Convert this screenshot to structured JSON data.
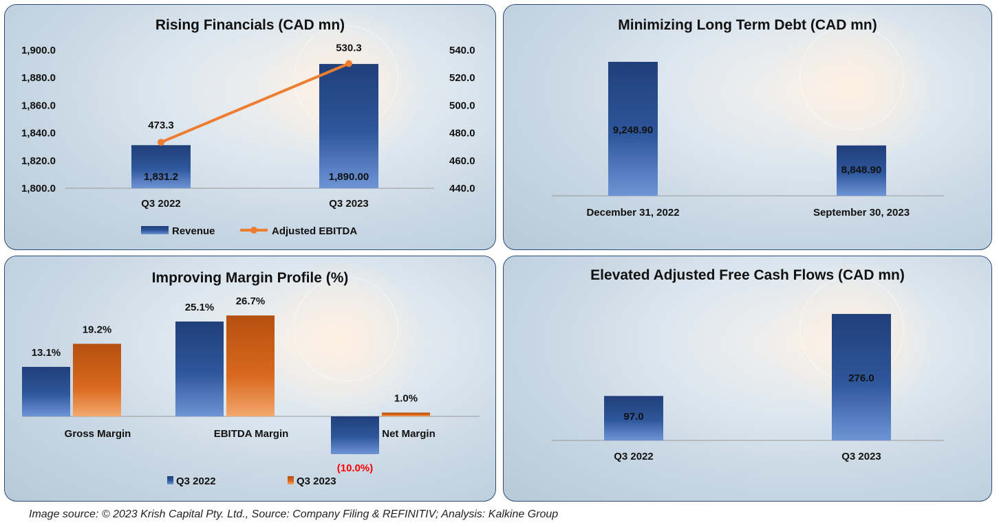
{
  "chart_data": [
    {
      "type": "bar+line",
      "title": "Rising Financials (CAD mn)",
      "categories": [
        "Q3 2022",
        "Q3 2023"
      ],
      "series": [
        {
          "name": "Revenue",
          "kind": "bar",
          "axis": "left",
          "values": [
            1831.2,
            1890.0
          ],
          "labels": [
            "1,831.2",
            "1,890.00"
          ],
          "color": "#2f579b"
        },
        {
          "name": "Adjusted EBITDA",
          "kind": "line",
          "axis": "right",
          "values": [
            473.3,
            530.3
          ],
          "labels": [
            "473.3",
            "530.3"
          ],
          "color": "#ed7d31"
        }
      ],
      "ylim_left": [
        1800,
        1900
      ],
      "yticks_left": [
        "1,800.0",
        "1,820.0",
        "1,840.0",
        "1,860.0",
        "1,880.0",
        "1,900.0"
      ],
      "ylim_right": [
        440,
        540
      ],
      "yticks_right": [
        "440.0",
        "460.0",
        "480.0",
        "500.0",
        "520.0",
        "540.0"
      ],
      "legend": "bottom",
      "grid": false
    },
    {
      "type": "bar",
      "title": "Minimizing Long Term Debt (CAD mn)",
      "categories": [
        "December 31, 2022",
        "September 30, 2023"
      ],
      "values": [
        9248.9,
        8848.9
      ],
      "labels": [
        "9,248.90",
        "8,848.90"
      ],
      "color": "#2f579b",
      "grid": false
    },
    {
      "type": "bar",
      "title": "Improving Margin Profile (%)",
      "categories": [
        "Gross Margin",
        "EBITDA Margin",
        "Net Margin"
      ],
      "series": [
        {
          "name": "Q3 2022",
          "values": [
            13.1,
            25.1,
            -10.0
          ],
          "labels": [
            "13.1%",
            "25.1%",
            "(10.0%)"
          ],
          "color": "#2f579b"
        },
        {
          "name": "Q3 2023",
          "values": [
            19.2,
            26.7,
            1.0
          ],
          "labels": [
            "19.2%",
            "26.7%",
            "1.0%"
          ],
          "color": "#c55a11"
        }
      ],
      "negative_label_color": "#ff0000",
      "legend": "bottom",
      "grid": false
    },
    {
      "type": "bar",
      "title": "Elevated Adjusted Free Cash Flows (CAD mn)",
      "categories": [
        "Q3 2022",
        "Q3 2023"
      ],
      "values": [
        97.0,
        276.0
      ],
      "labels": [
        "97.0",
        "276.0"
      ],
      "color": "#2f579b",
      "grid": false
    }
  ],
  "footer": "Image source: © 2023 Krish Capital Pty. Ltd., Source: Company Filing & REFINITIV; Analysis: Kalkine Group"
}
